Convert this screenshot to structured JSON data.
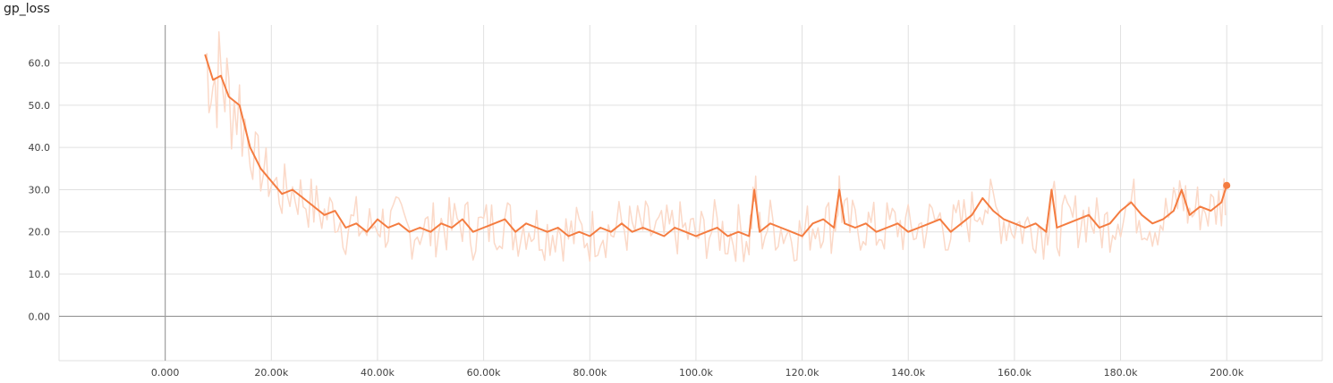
{
  "chart_data": {
    "type": "line",
    "title": "gp_loss",
    "xlabel": "",
    "ylabel": "",
    "xlim": [
      -20000,
      218000
    ],
    "ylim": [
      -10.5,
      69
    ],
    "x_ticks": [
      0,
      20000,
      40000,
      60000,
      80000,
      100000,
      120000,
      140000,
      160000,
      180000,
      200000
    ],
    "x_tick_labels": [
      "0.000",
      "20.00k",
      "40.00k",
      "60.00k",
      "80.00k",
      "100.0k",
      "120.0k",
      "140.0k",
      "160.0k",
      "180.0k",
      "200.0k"
    ],
    "y_ticks": [
      0,
      10,
      20,
      30,
      40,
      50,
      60
    ],
    "y_tick_labels": [
      "0.00",
      "10.0",
      "20.0",
      "30.0",
      "40.0",
      "50.0",
      "60.0"
    ],
    "grid": true,
    "colors": {
      "smoothed": "#f47c40",
      "raw": "#fbd9c8",
      "grid": "#e0e0e0",
      "axis": "#9e9e9e"
    },
    "series": [
      {
        "x": [
          0,
          2000,
          4000,
          6000,
          7500,
          9000,
          10500,
          12000,
          14000,
          16000,
          18000,
          20000,
          22000,
          24000,
          26000,
          28000,
          30000,
          32000,
          34000,
          36000,
          38000,
          40000,
          42000,
          44000,
          46000,
          48000,
          50000,
          52000,
          54000,
          56000,
          58000,
          60000,
          62000,
          64000,
          66000,
          68000,
          70000,
          72000,
          74000,
          76000,
          78000,
          80000,
          82000,
          84000,
          86000,
          88000,
          90000,
          92000,
          94000,
          96000,
          98000,
          100000,
          102000,
          104000,
          106000,
          108000,
          110000,
          111000,
          112000,
          114000,
          116000,
          118000,
          120000,
          122000,
          124000,
          126000,
          127000,
          128000,
          130000,
          132000,
          134000,
          136000,
          138000,
          140000,
          142000,
          144000,
          146000,
          148000,
          150000,
          152000,
          154000,
          156000,
          158000,
          160000,
          162000,
          164000,
          166000,
          167000,
          168000,
          170000,
          172000,
          174000,
          176000,
          178000,
          180000,
          182000,
          184000,
          186000,
          188000,
          190000,
          191500,
          193000,
          195000,
          197000,
          199000,
          200000
        ],
        "y": [
          null,
          null,
          null,
          null,
          62,
          56,
          57,
          52,
          50,
          40,
          35,
          32,
          29,
          30,
          28,
          26,
          24,
          25,
          21,
          22,
          20,
          23,
          21,
          22,
          20,
          21,
          20,
          22,
          21,
          23,
          20,
          21,
          22,
          23,
          20,
          22,
          21,
          20,
          21,
          19,
          20,
          19,
          21,
          20,
          22,
          20,
          21,
          20,
          19,
          21,
          20,
          19,
          20,
          21,
          19,
          20,
          19,
          30,
          20,
          22,
          21,
          20,
          19,
          22,
          23,
          21,
          30,
          22,
          21,
          22,
          20,
          21,
          22,
          20,
          21,
          22,
          23,
          20,
          22,
          24,
          28,
          25,
          23,
          22,
          21,
          22,
          20,
          30,
          21,
          22,
          23,
          24,
          21,
          22,
          25,
          27,
          24,
          22,
          23,
          25,
          30,
          24,
          26,
          25,
          27,
          31
        ]
      }
    ]
  }
}
